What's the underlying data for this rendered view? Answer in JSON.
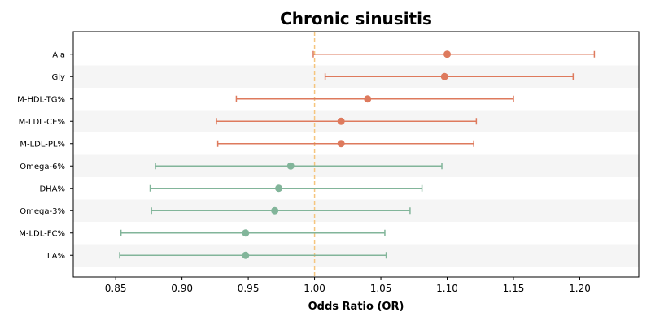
{
  "chart_data": {
    "type": "forest",
    "title": "Chronic sinusitis",
    "xlabel": "Odds Ratio (OR)",
    "ylabel": "",
    "xlim": [
      0.818,
      1.2445
    ],
    "xticks": [
      "0.85",
      "0.90",
      "0.95",
      "1.00",
      "1.05",
      "1.10",
      "1.15",
      "1.20"
    ],
    "reference_line": 1.0,
    "grid": false,
    "alternating_row_bands": true,
    "colors": {
      "risk": "#de7a5d",
      "protective": "#82b59a",
      "reference": "#f5c57e",
      "band": "#f5f5f5"
    },
    "rows": [
      {
        "label": "Ala",
        "or": 1.1,
        "lower": 0.999,
        "upper": 1.211,
        "group": "risk"
      },
      {
        "label": "Gly",
        "or": 1.098,
        "lower": 1.008,
        "upper": 1.195,
        "group": "risk"
      },
      {
        "label": "M-HDL-TG%",
        "or": 1.04,
        "lower": 0.941,
        "upper": 1.15,
        "group": "risk"
      },
      {
        "label": "M-LDL-CE%",
        "or": 1.02,
        "lower": 0.926,
        "upper": 1.122,
        "group": "risk"
      },
      {
        "label": "M-LDL-PL%",
        "or": 1.02,
        "lower": 0.927,
        "upper": 1.12,
        "group": "risk"
      },
      {
        "label": "Omega-6%",
        "or": 0.982,
        "lower": 0.88,
        "upper": 1.096,
        "group": "protective"
      },
      {
        "label": "DHA%",
        "or": 0.973,
        "lower": 0.876,
        "upper": 1.081,
        "group": "protective"
      },
      {
        "label": "Omega-3%",
        "or": 0.97,
        "lower": 0.877,
        "upper": 1.072,
        "group": "protective"
      },
      {
        "label": "M-LDL-FC%",
        "or": 0.948,
        "lower": 0.854,
        "upper": 1.053,
        "group": "protective"
      },
      {
        "label": "LA%",
        "or": 0.948,
        "lower": 0.853,
        "upper": 1.054,
        "group": "protective"
      }
    ]
  }
}
